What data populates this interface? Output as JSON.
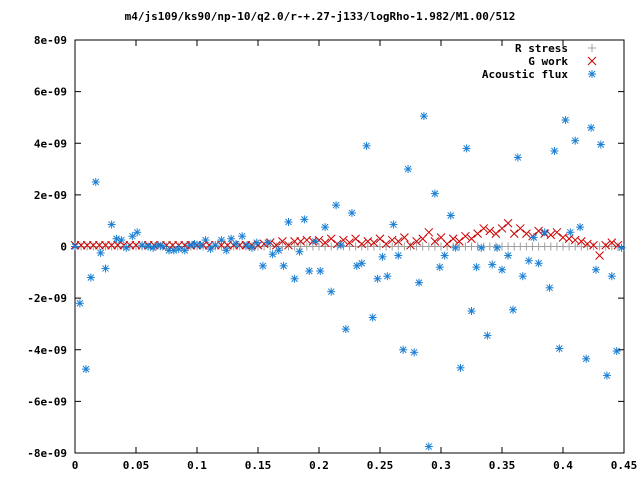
{
  "chart_data": {
    "type": "scatter",
    "title": "m4/js109/ks90/np-10/q2.0/r-+.27-j133/logRho-1.982/M1.00/512",
    "xlabel": "",
    "ylabel": "",
    "xlim": [
      0,
      0.45
    ],
    "ylim": [
      -8e-09,
      8e-09
    ],
    "x_ticks": [
      {
        "value": 0,
        "label": "0"
      },
      {
        "value": 0.05,
        "label": "0.05"
      },
      {
        "value": 0.1,
        "label": "0.1"
      },
      {
        "value": 0.15,
        "label": "0.15"
      },
      {
        "value": 0.2,
        "label": "0.2"
      },
      {
        "value": 0.25,
        "label": "0.25"
      },
      {
        "value": 0.3,
        "label": "0.3"
      },
      {
        "value": 0.35,
        "label": "0.35"
      },
      {
        "value": 0.4,
        "label": "0.4"
      },
      {
        "value": 0.45,
        "label": "0.45"
      }
    ],
    "y_ticks": [
      {
        "value": -8e-09,
        "label": "-8e-09"
      },
      {
        "value": -6e-09,
        "label": "-6e-09"
      },
      {
        "value": -4e-09,
        "label": "-4e-09"
      },
      {
        "value": -2e-09,
        "label": "-2e-09"
      },
      {
        "value": 0,
        "label": "0"
      },
      {
        "value": 2e-09,
        "label": "2e-09"
      },
      {
        "value": 4e-09,
        "label": "4e-09"
      },
      {
        "value": 6e-09,
        "label": "6e-09"
      },
      {
        "value": 8e-09,
        "label": "8e-09"
      }
    ],
    "grid": false,
    "legend_position": "top-right",
    "series": [
      {
        "name": "R stress",
        "marker": "plus",
        "color": "#a0a0a0",
        "points": [
          [
            0.0,
            0.0
          ],
          [
            0.005,
            0.0
          ],
          [
            0.01,
            0.0
          ],
          [
            0.015,
            0.0
          ],
          [
            0.02,
            0.0
          ],
          [
            0.025,
            0.0
          ],
          [
            0.03,
            0.0
          ],
          [
            0.035,
            0.0
          ],
          [
            0.04,
            0.0
          ],
          [
            0.045,
            0.0
          ],
          [
            0.05,
            0.0
          ],
          [
            0.055,
            0.0
          ],
          [
            0.06,
            0.0
          ],
          [
            0.065,
            0.0
          ],
          [
            0.07,
            0.0
          ],
          [
            0.075,
            0.0
          ],
          [
            0.08,
            0.0
          ],
          [
            0.085,
            0.0
          ],
          [
            0.09,
            0.0
          ],
          [
            0.095,
            0.0
          ],
          [
            0.1,
            0.0
          ],
          [
            0.105,
            0.0
          ],
          [
            0.11,
            0.0
          ],
          [
            0.115,
            0.0
          ],
          [
            0.12,
            0.0
          ],
          [
            0.125,
            0.0
          ],
          [
            0.13,
            0.0
          ],
          [
            0.135,
            0.0
          ],
          [
            0.14,
            0.0
          ],
          [
            0.145,
            0.0
          ],
          [
            0.15,
            0.0
          ],
          [
            0.155,
            0.0
          ],
          [
            0.16,
            0.0
          ],
          [
            0.165,
            0.0
          ],
          [
            0.17,
            0.0
          ],
          [
            0.175,
            0.0
          ],
          [
            0.18,
            0.0
          ],
          [
            0.185,
            0.0
          ],
          [
            0.19,
            0.0
          ],
          [
            0.195,
            0.0
          ],
          [
            0.2,
            0.0
          ],
          [
            0.205,
            0.0
          ],
          [
            0.21,
            0.0
          ],
          [
            0.215,
            0.0
          ],
          [
            0.22,
            0.0
          ],
          [
            0.225,
            0.0
          ],
          [
            0.23,
            0.0
          ],
          [
            0.235,
            0.0
          ],
          [
            0.24,
            0.0
          ],
          [
            0.245,
            0.0
          ],
          [
            0.25,
            0.0
          ],
          [
            0.255,
            0.0
          ],
          [
            0.26,
            0.0
          ],
          [
            0.265,
            0.0
          ],
          [
            0.27,
            0.0
          ],
          [
            0.275,
            0.0
          ],
          [
            0.28,
            0.0
          ],
          [
            0.285,
            0.0
          ],
          [
            0.29,
            0.0
          ],
          [
            0.295,
            0.0
          ],
          [
            0.3,
            0.0
          ],
          [
            0.305,
            0.0
          ],
          [
            0.31,
            0.0
          ],
          [
            0.315,
            0.0
          ],
          [
            0.32,
            0.0
          ],
          [
            0.325,
            0.0
          ],
          [
            0.33,
            0.0
          ],
          [
            0.335,
            0.0
          ],
          [
            0.34,
            0.0
          ],
          [
            0.345,
            0.0
          ],
          [
            0.35,
            0.0
          ],
          [
            0.355,
            0.0
          ],
          [
            0.36,
            0.0
          ],
          [
            0.365,
            0.0
          ],
          [
            0.37,
            0.0
          ],
          [
            0.375,
            0.0
          ],
          [
            0.38,
            0.0
          ],
          [
            0.385,
            0.0
          ],
          [
            0.39,
            0.0
          ],
          [
            0.395,
            0.0
          ],
          [
            0.4,
            0.0
          ],
          [
            0.405,
            0.0
          ],
          [
            0.41,
            0.0
          ],
          [
            0.415,
            0.0
          ],
          [
            0.42,
            0.0
          ],
          [
            0.425,
            0.0
          ],
          [
            0.43,
            0.0
          ],
          [
            0.435,
            0.0
          ],
          [
            0.44,
            0.0
          ],
          [
            0.445,
            0.0
          ]
        ]
      },
      {
        "name": "G work",
        "marker": "cross",
        "color": "#cc0000",
        "points": [
          [
            0.0,
            5e-11
          ],
          [
            0.005,
            5e-11
          ],
          [
            0.01,
            5e-11
          ],
          [
            0.015,
            5e-11
          ],
          [
            0.02,
            5e-11
          ],
          [
            0.025,
            5e-11
          ],
          [
            0.03,
            5e-11
          ],
          [
            0.035,
            5e-11
          ],
          [
            0.04,
            5e-11
          ],
          [
            0.045,
            5e-11
          ],
          [
            0.05,
            5e-11
          ],
          [
            0.055,
            5e-11
          ],
          [
            0.06,
            5e-11
          ],
          [
            0.065,
            5e-11
          ],
          [
            0.07,
            5e-11
          ],
          [
            0.075,
            5e-11
          ],
          [
            0.08,
            5e-11
          ],
          [
            0.085,
            5e-11
          ],
          [
            0.09,
            5e-11
          ],
          [
            0.095,
            5e-11
          ],
          [
            0.1,
            5e-11
          ],
          [
            0.105,
            5e-11
          ],
          [
            0.11,
            5e-11
          ],
          [
            0.115,
            5e-11
          ],
          [
            0.12,
            5e-11
          ],
          [
            0.125,
            5e-11
          ],
          [
            0.13,
            5e-11
          ],
          [
            0.135,
            5e-11
          ],
          [
            0.14,
            5e-11
          ],
          [
            0.145,
            5e-11
          ],
          [
            0.15,
            5e-11
          ],
          [
            0.155,
            1e-10
          ],
          [
            0.16,
            1.5e-10
          ],
          [
            0.165,
            5e-11
          ],
          [
            0.17,
            2e-10
          ],
          [
            0.175,
            5e-11
          ],
          [
            0.18,
            2e-10
          ],
          [
            0.185,
            2e-10
          ],
          [
            0.19,
            2.5e-10
          ],
          [
            0.195,
            2e-10
          ],
          [
            0.2,
            2.5e-10
          ],
          [
            0.205,
            1.5e-10
          ],
          [
            0.21,
            3e-10
          ],
          [
            0.215,
            1e-10
          ],
          [
            0.22,
            2.5e-10
          ],
          [
            0.225,
            1.5e-10
          ],
          [
            0.23,
            3e-10
          ],
          [
            0.235,
            1e-10
          ],
          [
            0.24,
            2e-10
          ],
          [
            0.245,
            1.5e-10
          ],
          [
            0.25,
            3e-10
          ],
          [
            0.255,
            1e-10
          ],
          [
            0.26,
            2.5e-10
          ],
          [
            0.265,
            2e-10
          ],
          [
            0.27,
            3.5e-10
          ],
          [
            0.275,
            5e-11
          ],
          [
            0.28,
            2e-10
          ],
          [
            0.285,
            3e-10
          ],
          [
            0.29,
            5.5e-10
          ],
          [
            0.295,
            2e-10
          ],
          [
            0.3,
            3.5e-10
          ],
          [
            0.305,
            1e-10
          ],
          [
            0.31,
            3e-10
          ],
          [
            0.315,
            2e-10
          ],
          [
            0.32,
            4e-10
          ],
          [
            0.325,
            3e-10
          ],
          [
            0.33,
            5e-10
          ],
          [
            0.335,
            7e-10
          ],
          [
            0.34,
            6e-10
          ],
          [
            0.345,
            5e-10
          ],
          [
            0.35,
            7e-10
          ],
          [
            0.355,
            9e-10
          ],
          [
            0.36,
            5e-10
          ],
          [
            0.365,
            7e-10
          ],
          [
            0.37,
            5e-10
          ],
          [
            0.375,
            4e-10
          ],
          [
            0.38,
            6e-10
          ],
          [
            0.385,
            5e-10
          ],
          [
            0.39,
            4.5e-10
          ],
          [
            0.395,
            5.5e-10
          ],
          [
            0.4,
            3.5e-10
          ],
          [
            0.405,
            3e-10
          ],
          [
            0.41,
            2.5e-10
          ],
          [
            0.415,
            2e-10
          ],
          [
            0.42,
            1e-10
          ],
          [
            0.425,
            5e-11
          ],
          [
            0.43,
            -3.5e-10
          ],
          [
            0.435,
            5e-11
          ],
          [
            0.44,
            1.5e-10
          ],
          [
            0.445,
            5e-11
          ]
        ]
      },
      {
        "name": "Acoustic flux",
        "marker": "star",
        "color": "#1a7fd4",
        "points": [
          [
            0.0,
            0.0
          ],
          [
            0.004,
            -2.2e-09
          ],
          [
            0.009,
            -4.75e-09
          ],
          [
            0.013,
            -1.2e-09
          ],
          [
            0.017,
            2.5e-09
          ],
          [
            0.021,
            -2.5e-10
          ],
          [
            0.025,
            -8.5e-10
          ],
          [
            0.03,
            8.5e-10
          ],
          [
            0.034,
            3e-10
          ],
          [
            0.038,
            2.5e-10
          ],
          [
            0.042,
            -5e-11
          ],
          [
            0.047,
            4e-10
          ],
          [
            0.051,
            5.5e-10
          ],
          [
            0.055,
            5e-11
          ],
          [
            0.06,
            0.0
          ],
          [
            0.064,
            -5e-11
          ],
          [
            0.068,
            5e-11
          ],
          [
            0.072,
            0.0
          ],
          [
            0.077,
            -1.5e-10
          ],
          [
            0.081,
            -1.5e-10
          ],
          [
            0.085,
            -1e-10
          ],
          [
            0.09,
            -1.5e-10
          ],
          [
            0.094,
            5e-11
          ],
          [
            0.098,
            1e-10
          ],
          [
            0.103,
            5e-11
          ],
          [
            0.107,
            2.5e-10
          ],
          [
            0.111,
            -1e-10
          ],
          [
            0.115,
            5e-11
          ],
          [
            0.12,
            2.5e-10
          ],
          [
            0.124,
            -1.5e-10
          ],
          [
            0.128,
            3e-10
          ],
          [
            0.132,
            1e-10
          ],
          [
            0.137,
            4e-10
          ],
          [
            0.141,
            5e-11
          ],
          [
            0.145,
            -5e-11
          ],
          [
            0.149,
            1.5e-10
          ],
          [
            0.154,
            -7.5e-10
          ],
          [
            0.158,
            1.5e-10
          ],
          [
            0.162,
            -3e-10
          ],
          [
            0.167,
            -1.5e-10
          ],
          [
            0.171,
            -7.5e-10
          ],
          [
            0.175,
            9.5e-10
          ],
          [
            0.18,
            -1.25e-09
          ],
          [
            0.184,
            -2e-10
          ],
          [
            0.188,
            1.05e-09
          ],
          [
            0.192,
            -9.5e-10
          ],
          [
            0.197,
            2e-10
          ],
          [
            0.201,
            -9.5e-10
          ],
          [
            0.205,
            7.5e-10
          ],
          [
            0.21,
            -1.75e-09
          ],
          [
            0.214,
            1.6e-09
          ],
          [
            0.218,
            5e-11
          ],
          [
            0.222,
            -3.2e-09
          ],
          [
            0.227,
            1.3e-09
          ],
          [
            0.231,
            -7.5e-10
          ],
          [
            0.235,
            -6.5e-10
          ],
          [
            0.239,
            3.9e-09
          ],
          [
            0.244,
            -2.75e-09
          ],
          [
            0.248,
            -1.25e-09
          ],
          [
            0.252,
            -4e-10
          ],
          [
            0.256,
            -1.15e-09
          ],
          [
            0.261,
            8.5e-10
          ],
          [
            0.265,
            -3.5e-10
          ],
          [
            0.269,
            -4e-09
          ],
          [
            0.273,
            3e-09
          ],
          [
            0.278,
            -4.1e-09
          ],
          [
            0.282,
            -1.4e-09
          ],
          [
            0.286,
            5.05e-09
          ],
          [
            0.29,
            -7.75e-09
          ],
          [
            0.295,
            2.05e-09
          ],
          [
            0.299,
            -8e-10
          ],
          [
            0.303,
            -3.5e-10
          ],
          [
            0.308,
            1.2e-09
          ],
          [
            0.312,
            -5e-11
          ],
          [
            0.316,
            -4.7e-09
          ],
          [
            0.321,
            3.8e-09
          ],
          [
            0.325,
            -2.5e-09
          ],
          [
            0.329,
            -8e-10
          ],
          [
            0.333,
            -5e-11
          ],
          [
            0.338,
            -3.45e-09
          ],
          [
            0.342,
            -7e-10
          ],
          [
            0.346,
            -5e-11
          ],
          [
            0.35,
            -9e-10
          ],
          [
            0.355,
            -3.5e-10
          ],
          [
            0.359,
            -2.45e-09
          ],
          [
            0.363,
            3.45e-09
          ],
          [
            0.367,
            -1.15e-09
          ],
          [
            0.372,
            -5.5e-10
          ],
          [
            0.376,
            3.5e-10
          ],
          [
            0.38,
            -6.5e-10
          ],
          [
            0.385,
            5.5e-10
          ],
          [
            0.389,
            -1.6e-09
          ],
          [
            0.393,
            3.7e-09
          ],
          [
            0.397,
            -3.95e-09
          ],
          [
            0.402,
            4.9e-09
          ],
          [
            0.406,
            5.5e-10
          ],
          [
            0.41,
            4.1e-09
          ],
          [
            0.414,
            7.5e-10
          ],
          [
            0.419,
            -4.35e-09
          ],
          [
            0.423,
            4.6e-09
          ],
          [
            0.427,
            -9e-10
          ],
          [
            0.431,
            3.95e-09
          ],
          [
            0.436,
            -5e-09
          ],
          [
            0.44,
            -1.15e-09
          ],
          [
            0.444,
            -4.05e-09
          ],
          [
            0.448,
            -5e-11
          ]
        ]
      }
    ]
  }
}
